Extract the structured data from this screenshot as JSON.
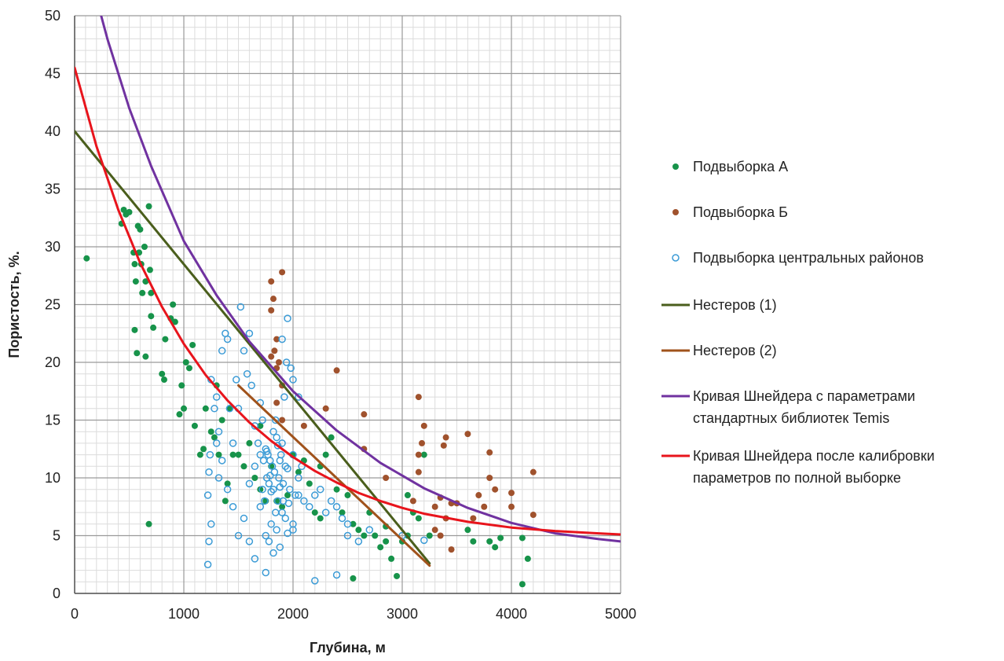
{
  "chart_data": {
    "type": "scatter",
    "title": "",
    "xlabel": "Глубина, м",
    "ylabel": "Пористость, %.",
    "xlim": [
      0,
      5000
    ],
    "ylim": [
      0,
      50
    ],
    "xticks": [
      0,
      1000,
      2000,
      3000,
      4000,
      5000
    ],
    "yticks": [
      0,
      5,
      10,
      15,
      20,
      25,
      30,
      35,
      40,
      45,
      50
    ],
    "grid": true,
    "legend_position": "right",
    "series": [
      {
        "name": "Подвыборка А",
        "kind": "points",
        "marker": "filled-circle",
        "color": "#17934a",
        "points": [
          [
            110,
            29
          ],
          [
            430,
            32
          ],
          [
            450,
            33.2
          ],
          [
            470,
            32.8
          ],
          [
            500,
            33
          ],
          [
            540,
            29.5
          ],
          [
            550,
            28.5
          ],
          [
            560,
            27
          ],
          [
            580,
            31.8
          ],
          [
            590,
            29.5
          ],
          [
            600,
            31.5
          ],
          [
            610,
            28.5
          ],
          [
            620,
            26
          ],
          [
            640,
            30
          ],
          [
            650,
            27
          ],
          [
            680,
            33.5
          ],
          [
            690,
            28
          ],
          [
            700,
            26
          ],
          [
            550,
            22.8
          ],
          [
            570,
            20.8
          ],
          [
            650,
            20.5
          ],
          [
            700,
            24
          ],
          [
            720,
            23
          ],
          [
            800,
            19
          ],
          [
            820,
            18.5
          ],
          [
            830,
            22
          ],
          [
            880,
            23.8
          ],
          [
            900,
            25
          ],
          [
            920,
            23.5
          ],
          [
            960,
            15.5
          ],
          [
            980,
            18
          ],
          [
            1000,
            16
          ],
          [
            1020,
            20
          ],
          [
            1050,
            19.5
          ],
          [
            1080,
            21.5
          ],
          [
            1100,
            14.5
          ],
          [
            1150,
            12
          ],
          [
            1180,
            12.5
          ],
          [
            1200,
            16
          ],
          [
            1250,
            14
          ],
          [
            1280,
            13.5
          ],
          [
            1300,
            18
          ],
          [
            1320,
            12
          ],
          [
            1350,
            15
          ],
          [
            1380,
            8
          ],
          [
            1400,
            9.5
          ],
          [
            1420,
            16
          ],
          [
            1450,
            12
          ],
          [
            1500,
            12
          ],
          [
            1550,
            11
          ],
          [
            1600,
            13
          ],
          [
            1650,
            10
          ],
          [
            1700,
            9
          ],
          [
            1750,
            8
          ],
          [
            1800,
            11
          ],
          [
            1850,
            8
          ],
          [
            1900,
            7.5
          ],
          [
            1950,
            8.5
          ],
          [
            2000,
            12
          ],
          [
            2050,
            10.5
          ],
          [
            2100,
            11.5
          ],
          [
            2150,
            9.5
          ],
          [
            2200,
            7
          ],
          [
            2250,
            6.5
          ],
          [
            2300,
            12
          ],
          [
            2350,
            13.5
          ],
          [
            2400,
            9
          ],
          [
            2450,
            7
          ],
          [
            2500,
            8.5
          ],
          [
            2550,
            6
          ],
          [
            2600,
            5.5
          ],
          [
            2650,
            5
          ],
          [
            2700,
            7
          ],
          [
            2750,
            5
          ],
          [
            2800,
            4
          ],
          [
            2850,
            4.5
          ],
          [
            2900,
            3
          ],
          [
            2950,
            1.5
          ],
          [
            3000,
            4.5
          ],
          [
            3050,
            5
          ],
          [
            3100,
            7
          ],
          [
            3150,
            6.5
          ],
          [
            3200,
            12
          ],
          [
            3250,
            5
          ],
          [
            3600,
            5.5
          ],
          [
            3650,
            4.5
          ],
          [
            3800,
            4.5
          ],
          [
            3850,
            4
          ],
          [
            3900,
            4.8
          ],
          [
            4100,
            4.8
          ],
          [
            4150,
            3
          ],
          [
            4100,
            0.8
          ],
          [
            2550,
            1.3
          ],
          [
            680,
            6
          ],
          [
            1700,
            14.5
          ],
          [
            2250,
            11
          ],
          [
            2850,
            5.8
          ],
          [
            3050,
            8.5
          ]
        ]
      },
      {
        "name": "Подвыборка Б",
        "kind": "points",
        "marker": "filled-circle",
        "color": "#a0522d",
        "points": [
          [
            1800,
            27
          ],
          [
            1900,
            27.8
          ],
          [
            1820,
            25.5
          ],
          [
            1800,
            24.5
          ],
          [
            1850,
            22
          ],
          [
            1830,
            21
          ],
          [
            1870,
            20
          ],
          [
            1800,
            20.5
          ],
          [
            1850,
            19.5
          ],
          [
            1900,
            18
          ],
          [
            1850,
            16.5
          ],
          [
            1900,
            15
          ],
          [
            2100,
            14.5
          ],
          [
            2300,
            16
          ],
          [
            2400,
            19.3
          ],
          [
            2650,
            15.5
          ],
          [
            2650,
            12.5
          ],
          [
            2850,
            10
          ],
          [
            3100,
            8
          ],
          [
            3150,
            10.5
          ],
          [
            3150,
            12
          ],
          [
            3180,
            13
          ],
          [
            3150,
            17
          ],
          [
            3200,
            14.5
          ],
          [
            3300,
            7.5
          ],
          [
            3350,
            8.3
          ],
          [
            3380,
            12.8
          ],
          [
            3400,
            13.5
          ],
          [
            3450,
            7.8
          ],
          [
            3300,
            5.5
          ],
          [
            3350,
            5
          ],
          [
            3400,
            6.5
          ],
          [
            3450,
            3.8
          ],
          [
            3500,
            7.8
          ],
          [
            3600,
            13.8
          ],
          [
            3650,
            6.5
          ],
          [
            3700,
            8.5
          ],
          [
            3750,
            7.5
          ],
          [
            3800,
            12.2
          ],
          [
            3800,
            10
          ],
          [
            3850,
            9
          ],
          [
            4000,
            8.7
          ],
          [
            4000,
            7.5
          ],
          [
            4200,
            10.5
          ],
          [
            4200,
            6.8
          ]
        ]
      },
      {
        "name": "Подвыборка центральных районов",
        "kind": "points",
        "marker": "open-circle",
        "color": "#3b9bd6",
        "points": [
          [
            1250,
            18.5
          ],
          [
            1280,
            16
          ],
          [
            1300,
            17
          ],
          [
            1320,
            14
          ],
          [
            1350,
            21
          ],
          [
            1380,
            22.5
          ],
          [
            1400,
            22
          ],
          [
            1420,
            16
          ],
          [
            1450,
            13
          ],
          [
            1480,
            18.5
          ],
          [
            1500,
            16
          ],
          [
            1520,
            24.8
          ],
          [
            1550,
            21
          ],
          [
            1580,
            19
          ],
          [
            1600,
            22.5
          ],
          [
            1620,
            18
          ],
          [
            1650,
            14.5
          ],
          [
            1680,
            13
          ],
          [
            1700,
            16.5
          ],
          [
            1720,
            15
          ],
          [
            1750,
            12.5
          ],
          [
            1770,
            12
          ],
          [
            1790,
            11.5
          ],
          [
            1810,
            11
          ],
          [
            1830,
            10.5
          ],
          [
            1850,
            13.5
          ],
          [
            1870,
            10
          ],
          [
            1890,
            12
          ],
          [
            1910,
            9.5
          ],
          [
            1930,
            11
          ],
          [
            1950,
            10.8
          ],
          [
            1970,
            9
          ],
          [
            2000,
            12
          ],
          [
            2020,
            8.5
          ],
          [
            2050,
            10
          ],
          [
            2080,
            11
          ],
          [
            2100,
            8
          ],
          [
            2150,
            7.5
          ],
          [
            2200,
            8.5
          ],
          [
            2250,
            9
          ],
          [
            2300,
            7
          ],
          [
            2350,
            8
          ],
          [
            2400,
            7.5
          ],
          [
            2450,
            6.5
          ],
          [
            2500,
            6
          ],
          [
            1750,
            5
          ],
          [
            1780,
            4.5
          ],
          [
            1800,
            6
          ],
          [
            1820,
            3.5
          ],
          [
            1850,
            5.5
          ],
          [
            1880,
            4
          ],
          [
            1900,
            7
          ],
          [
            1950,
            5.2
          ],
          [
            2000,
            5.5
          ],
          [
            1700,
            7.5
          ],
          [
            1720,
            9
          ],
          [
            1740,
            8
          ],
          [
            1760,
            10
          ],
          [
            1780,
            9.5
          ],
          [
            1800,
            8.8
          ],
          [
            1820,
            14
          ],
          [
            1840,
            15
          ],
          [
            1860,
            12.8
          ],
          [
            1880,
            11.5
          ],
          [
            1900,
            13
          ],
          [
            1920,
            17
          ],
          [
            1940,
            20
          ],
          [
            1950,
            23.8
          ],
          [
            1900,
            22
          ],
          [
            2000,
            18.5
          ],
          [
            1980,
            19.5
          ],
          [
            2050,
            17
          ],
          [
            1230,
            10.5
          ],
          [
            1220,
            8.5
          ],
          [
            1240,
            12
          ],
          [
            1250,
            6
          ],
          [
            1230,
            4.5
          ],
          [
            1220,
            2.5
          ],
          [
            1300,
            13
          ],
          [
            1320,
            10
          ],
          [
            1350,
            11.5
          ],
          [
            1400,
            9
          ],
          [
            1450,
            7.5
          ],
          [
            1500,
            5
          ],
          [
            1550,
            6.5
          ],
          [
            1600,
            4.5
          ],
          [
            1650,
            3
          ],
          [
            1750,
            1.8
          ],
          [
            2200,
            1.1
          ],
          [
            2400,
            1.6
          ],
          [
            3000,
            5
          ],
          [
            3200,
            4.6
          ],
          [
            2500,
            5
          ],
          [
            2600,
            4.5
          ],
          [
            2700,
            5.5
          ],
          [
            1600,
            9.5
          ],
          [
            1650,
            11
          ],
          [
            1700,
            12
          ],
          [
            1730,
            11.5
          ],
          [
            1760,
            12.3
          ],
          [
            1790,
            10.2
          ],
          [
            1820,
            9
          ],
          [
            1840,
            7
          ],
          [
            1860,
            8
          ],
          [
            1880,
            9.2
          ],
          [
            1910,
            8
          ],
          [
            1930,
            6.5
          ],
          [
            1960,
            7.8
          ],
          [
            2000,
            6
          ],
          [
            2050,
            8.5
          ]
        ]
      },
      {
        "name": "Нестеров (1)",
        "kind": "line",
        "color": "#4a5e1c",
        "points": [
          [
            0,
            40
          ],
          [
            3250,
            2.6
          ]
        ]
      },
      {
        "name": "Нестеров (2)",
        "kind": "line",
        "color": "#a0521b",
        "points": [
          [
            1500,
            18
          ],
          [
            3250,
            2.4
          ]
        ]
      },
      {
        "name": "Кривая Шнейдера с параметрами стандартных библиотек Temis",
        "kind": "curve",
        "color": "#7032a0",
        "points": [
          [
            100,
            55
          ],
          [
            300,
            48
          ],
          [
            500,
            42
          ],
          [
            700,
            37
          ],
          [
            1000,
            30.5
          ],
          [
            1300,
            25.8
          ],
          [
            1600,
            21.8
          ],
          [
            2000,
            17.5
          ],
          [
            2400,
            14.1
          ],
          [
            2800,
            11.3
          ],
          [
            3200,
            9.1
          ],
          [
            3600,
            7.4
          ],
          [
            4000,
            6.1
          ],
          [
            4400,
            5.2
          ],
          [
            4800,
            4.7
          ],
          [
            5000,
            4.5
          ]
        ]
      },
      {
        "name": "Кривая Шнейдера после калибровки параметров по полной выборке",
        "kind": "curve",
        "color": "#e8141c",
        "points": [
          [
            0,
            45.5
          ],
          [
            200,
            38.7
          ],
          [
            400,
            33.2
          ],
          [
            600,
            28.6
          ],
          [
            800,
            24.8
          ],
          [
            1000,
            21.6
          ],
          [
            1200,
            18.9
          ],
          [
            1400,
            16.7
          ],
          [
            1600,
            14.8
          ],
          [
            1800,
            13.2
          ],
          [
            2000,
            11.8
          ],
          [
            2200,
            10.6
          ],
          [
            2400,
            9.6
          ],
          [
            2600,
            8.7
          ],
          [
            2800,
            8
          ],
          [
            3000,
            7.4
          ],
          [
            3200,
            6.9
          ],
          [
            3600,
            6.2
          ],
          [
            4000,
            5.7
          ],
          [
            4400,
            5.4
          ],
          [
            4800,
            5.2
          ],
          [
            5000,
            5.1
          ]
        ]
      }
    ]
  }
}
